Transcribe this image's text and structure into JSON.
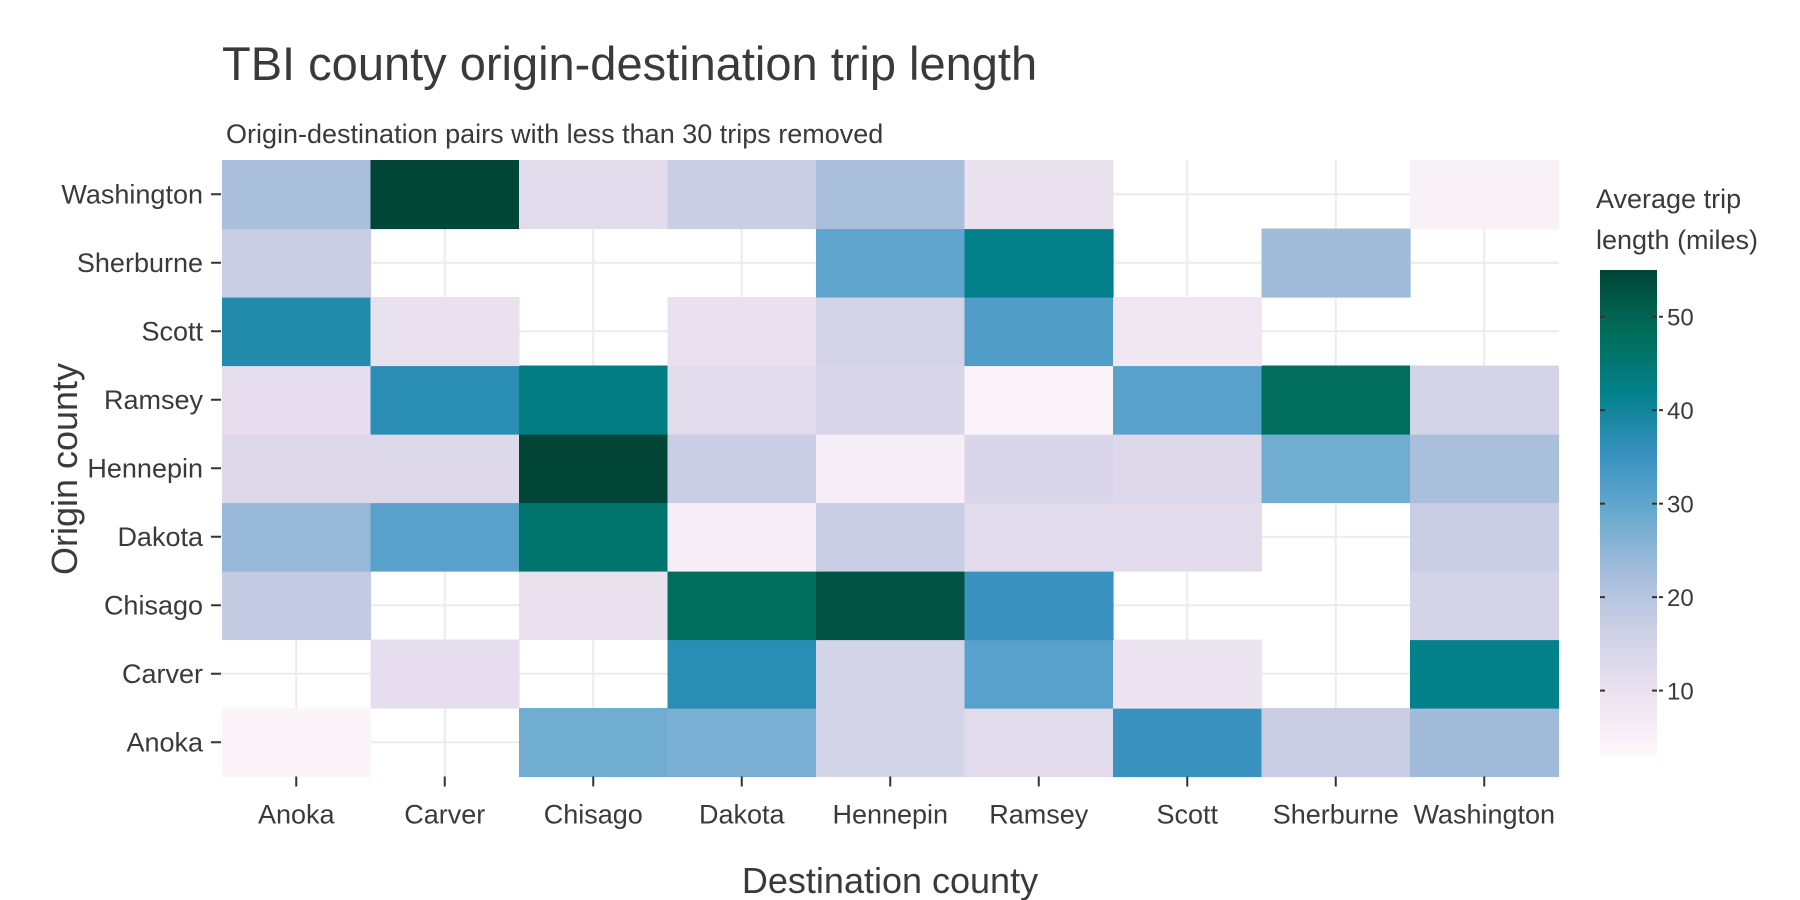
{
  "chart_data": {
    "type": "heatmap",
    "title": "TBI county origin-destination trip length",
    "subtitle": "Origin-destination pairs with less than 30 trips removed",
    "xlabel": "Destination county",
    "ylabel": "Origin county",
    "x_categories": [
      "Anoka",
      "Carver",
      "Chisago",
      "Dakota",
      "Hennepin",
      "Ramsey",
      "Scott",
      "Sherburne",
      "Washington"
    ],
    "y_categories": [
      "Anoka",
      "Carver",
      "Chisago",
      "Dakota",
      "Hennepin",
      "Ramsey",
      "Scott",
      "Sherburne",
      "Washington"
    ],
    "values": [
      [
        4,
        null,
        28,
        27,
        15,
        12,
        35,
        17,
        23
      ],
      [
        null,
        11,
        null,
        37,
        15,
        31,
        9,
        null,
        42
      ],
      [
        18,
        null,
        10,
        48,
        53,
        35,
        null,
        null,
        15
      ],
      [
        24,
        31,
        46,
        6,
        17,
        12,
        12,
        null,
        17
      ],
      [
        13,
        13,
        55,
        17,
        6,
        14,
        13,
        28,
        22
      ],
      [
        11,
        37,
        43,
        12,
        14,
        4,
        31,
        48,
        15
      ],
      [
        38,
        10,
        null,
        10,
        15,
        32,
        8,
        null,
        null
      ],
      [
        17,
        null,
        null,
        null,
        30,
        42,
        null,
        23,
        null
      ],
      [
        22,
        55,
        12,
        17,
        22,
        10,
        null,
        null,
        5
      ]
    ],
    "colorbar": {
      "title": [
        "Average trip",
        "length (miles)"
      ],
      "min": 3,
      "max": 55,
      "ticks": [
        10,
        20,
        30,
        40,
        50
      ],
      "colors": [
        "#fff7fb",
        "#ece2f0",
        "#d0d1e6",
        "#a6bddb",
        "#67a9cf",
        "#3690c0",
        "#02818a",
        "#016c59",
        "#014636"
      ]
    },
    "grid": true,
    "legend_position": "right"
  }
}
